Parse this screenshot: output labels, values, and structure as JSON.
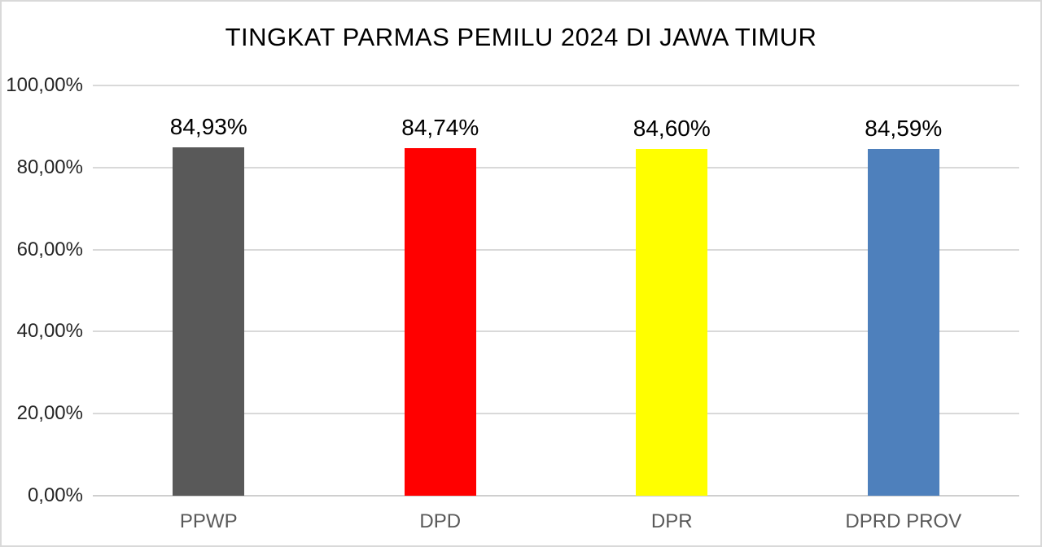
{
  "title": "TINGKAT PARMAS PEMILU 2024 DI JAWA TIMUR",
  "chart_data": {
    "type": "bar",
    "title": "TINGKAT PARMAS PEMILU 2024 DI JAWA TIMUR",
    "categories": [
      "PPWP",
      "DPD",
      "DPR",
      "DPRD PROV"
    ],
    "values": [
      84.93,
      84.74,
      84.6,
      84.59
    ],
    "value_labels": [
      "84,93%",
      "84,74%",
      "84,60%",
      "84,59%"
    ],
    "bar_colors": [
      "#595959",
      "#FF0000",
      "#FFFF00",
      "#4E80BC"
    ],
    "xlabel": "",
    "ylabel": "",
    "ylim": [
      0,
      100
    ],
    "y_tick_step": 20,
    "y_ticks": [
      "0,00%",
      "20,00%",
      "40,00%",
      "60,00%",
      "80,00%",
      "100,00%"
    ],
    "grid": true,
    "gridline_color": "#D9D9D9",
    "legend": false
  },
  "colors": {
    "background": "#FFFFFF",
    "frame_border": "#D9D9D9",
    "axis_line": "#CFCFCF",
    "title_text": "#000000",
    "value_label_text": "#000000",
    "tick_text": "#262626",
    "category_text": "#595959"
  }
}
